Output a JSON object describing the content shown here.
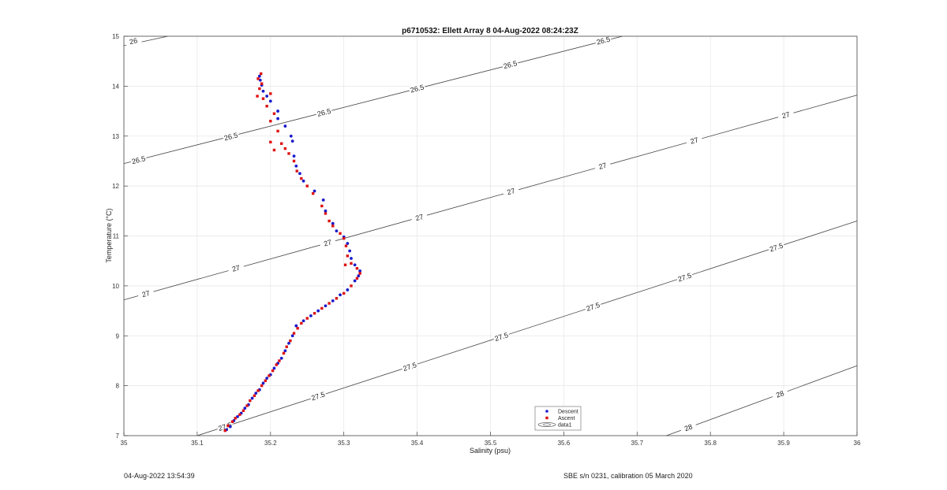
{
  "chart_data": {
    "type": "scatter",
    "title": "p6710532: Ellett Array 8 04-Aug-2022 08:24:23Z",
    "xlabel": "Salinity (psu)",
    "ylabel": "Temperature (°C)",
    "xlim": [
      35,
      36
    ],
    "ylim": [
      7,
      15
    ],
    "x_ticks": [
      "35",
      "35.1",
      "35.2",
      "35.3",
      "35.4",
      "35.5",
      "35.6",
      "35.7",
      "35.8",
      "35.9",
      "36"
    ],
    "y_ticks": [
      "7",
      "8",
      "9",
      "10",
      "11",
      "12",
      "13",
      "14",
      "15"
    ],
    "grid": true,
    "legend_position": "bottom-center",
    "legend": [
      "Descent",
      "Ascent",
      "data1"
    ],
    "colors": {
      "descent": "#1a1acc",
      "ascent": "#dd1111",
      "contour": "#444444"
    },
    "contours": [
      {
        "value": "26",
        "line": [
          [
            35,
            14.81
          ],
          [
            35.06,
            15
          ]
        ],
        "labels": [
          [
            35.013,
            14.9
          ]
        ]
      },
      {
        "value": "26.5",
        "line": [
          [
            35,
            12.45
          ],
          [
            35.68,
            15
          ]
        ],
        "labels": [
          [
            35.02,
            12.52
          ],
          [
            35.146,
            12.99
          ],
          [
            35.273,
            13.47
          ],
          [
            35.4,
            13.95
          ],
          [
            35.527,
            14.43
          ],
          [
            35.654,
            14.91
          ]
        ]
      },
      {
        "value": "27",
        "line": [
          [
            35,
            9.72
          ],
          [
            36,
            13.82
          ]
        ],
        "labels": [
          [
            35.03,
            9.84
          ],
          [
            35.153,
            10.35
          ],
          [
            35.278,
            10.86
          ],
          [
            35.403,
            11.37
          ],
          [
            35.528,
            11.89
          ],
          [
            35.653,
            12.4
          ],
          [
            35.778,
            12.91
          ],
          [
            35.903,
            13.42
          ]
        ]
      },
      {
        "value": "27.5",
        "line": [
          [
            35.1,
            7
          ],
          [
            36,
            11.3
          ]
        ],
        "labels": [
          [
            35.138,
            7.18
          ],
          [
            35.265,
            7.79
          ],
          [
            35.39,
            8.38
          ],
          [
            35.515,
            8.98
          ],
          [
            35.64,
            9.58
          ],
          [
            35.765,
            10.17
          ],
          [
            35.89,
            10.77
          ]
        ]
      },
      {
        "value": "28",
        "line": [
          [
            35.74,
            7
          ],
          [
            36,
            8.4
          ]
        ],
        "labels": [
          [
            35.77,
            7.16
          ],
          [
            35.895,
            7.83
          ]
        ]
      }
    ],
    "series": [
      {
        "name": "Descent",
        "points": [
          [
            35.14,
            7.12
          ],
          [
            35.145,
            7.18
          ],
          [
            35.15,
            7.3
          ],
          [
            35.155,
            7.38
          ],
          [
            35.16,
            7.45
          ],
          [
            35.165,
            7.55
          ],
          [
            35.17,
            7.62
          ],
          [
            35.175,
            7.75
          ],
          [
            35.18,
            7.85
          ],
          [
            35.185,
            7.92
          ],
          [
            35.19,
            8.05
          ],
          [
            35.195,
            8.15
          ],
          [
            35.2,
            8.22
          ],
          [
            35.205,
            8.35
          ],
          [
            35.21,
            8.45
          ],
          [
            35.215,
            8.55
          ],
          [
            35.22,
            8.7
          ],
          [
            35.225,
            8.85
          ],
          [
            35.23,
            9.0
          ],
          [
            35.235,
            9.2
          ],
          [
            35.245,
            9.3
          ],
          [
            35.255,
            9.4
          ],
          [
            35.265,
            9.5
          ],
          [
            35.275,
            9.6
          ],
          [
            35.285,
            9.7
          ],
          [
            35.295,
            9.82
          ],
          [
            35.305,
            9.92
          ],
          [
            35.315,
            10.1
          ],
          [
            35.32,
            10.2
          ],
          [
            35.322,
            10.3
          ],
          [
            35.315,
            10.42
          ],
          [
            35.31,
            10.55
          ],
          [
            35.308,
            10.7
          ],
          [
            35.305,
            10.85
          ],
          [
            35.3,
            10.98
          ],
          [
            35.29,
            11.1
          ],
          [
            35.285,
            11.25
          ],
          [
            35.275,
            11.5
          ],
          [
            35.272,
            11.72
          ],
          [
            35.26,
            11.9
          ],
          [
            35.245,
            12.1
          ],
          [
            35.24,
            12.25
          ],
          [
            35.235,
            12.4
          ],
          [
            35.232,
            12.6
          ],
          [
            35.23,
            12.9
          ],
          [
            35.228,
            13.0
          ],
          [
            35.22,
            13.2
          ],
          [
            35.21,
            13.35
          ],
          [
            35.21,
            13.5
          ],
          [
            35.2,
            13.7
          ],
          [
            35.195,
            13.8
          ],
          [
            35.19,
            13.9
          ],
          [
            35.188,
            14.02
          ],
          [
            35.186,
            14.12
          ],
          [
            35.185,
            14.2
          ]
        ]
      },
      {
        "name": "Ascent",
        "points": [
          [
            35.138,
            7.1
          ],
          [
            35.142,
            7.2
          ],
          [
            35.148,
            7.28
          ],
          [
            35.152,
            7.35
          ],
          [
            35.158,
            7.42
          ],
          [
            35.163,
            7.5
          ],
          [
            35.168,
            7.6
          ],
          [
            35.172,
            7.7
          ],
          [
            35.178,
            7.8
          ],
          [
            35.183,
            7.9
          ],
          [
            35.188,
            8.0
          ],
          [
            35.193,
            8.1
          ],
          [
            35.198,
            8.2
          ],
          [
            35.203,
            8.3
          ],
          [
            35.208,
            8.42
          ],
          [
            35.212,
            8.5
          ],
          [
            35.218,
            8.65
          ],
          [
            35.222,
            8.78
          ],
          [
            35.227,
            8.9
          ],
          [
            35.232,
            9.05
          ],
          [
            35.237,
            9.15
          ],
          [
            35.242,
            9.25
          ],
          [
            35.25,
            9.35
          ],
          [
            35.26,
            9.45
          ],
          [
            35.27,
            9.55
          ],
          [
            35.28,
            9.65
          ],
          [
            35.29,
            9.75
          ],
          [
            35.3,
            9.85
          ],
          [
            35.31,
            10.0
          ],
          [
            35.318,
            10.15
          ],
          [
            35.322,
            10.25
          ],
          [
            35.318,
            10.35
          ],
          [
            35.31,
            10.45
          ],
          [
            35.302,
            10.42
          ],
          [
            35.305,
            10.6
          ],
          [
            35.303,
            10.8
          ],
          [
            35.3,
            10.95
          ],
          [
            35.295,
            11.05
          ],
          [
            35.285,
            11.2
          ],
          [
            35.28,
            11.3
          ],
          [
            35.275,
            11.45
          ],
          [
            35.27,
            11.6
          ],
          [
            35.258,
            11.85
          ],
          [
            35.25,
            12.0
          ],
          [
            35.242,
            12.15
          ],
          [
            35.236,
            12.3
          ],
          [
            35.232,
            12.5
          ],
          [
            35.225,
            12.65
          ],
          [
            35.22,
            12.75
          ],
          [
            35.215,
            12.85
          ],
          [
            35.205,
            12.72
          ],
          [
            35.2,
            12.88
          ],
          [
            35.21,
            13.1
          ],
          [
            35.2,
            13.3
          ],
          [
            35.205,
            13.45
          ],
          [
            35.195,
            13.6
          ],
          [
            35.19,
            13.75
          ],
          [
            35.182,
            13.8
          ],
          [
            35.2,
            13.85
          ],
          [
            35.185,
            13.95
          ],
          [
            35.188,
            14.05
          ],
          [
            35.183,
            14.15
          ],
          [
            35.187,
            14.25
          ]
        ]
      }
    ]
  },
  "footer": {
    "timestamp": "04-Aug-2022 13:54:39",
    "calibration": "SBE s/n 0231, calibration 05 March 2020"
  }
}
